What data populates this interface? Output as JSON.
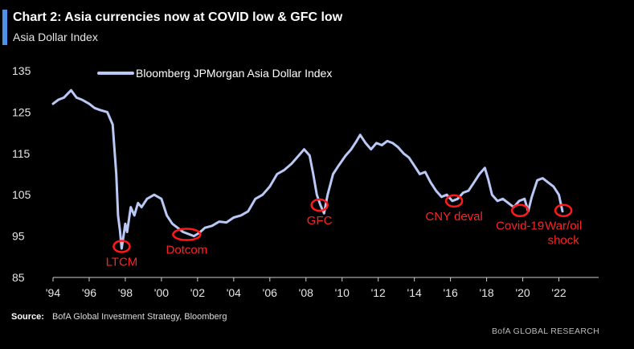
{
  "header": {
    "title": "Chart 2: Asia currencies now at COVID low & GFC low",
    "subtitle": "Asia Dollar Index",
    "accent_color": "#4f8fe8"
  },
  "footer": {
    "source_label": "Source:",
    "source_text": "BofA Global Investment Strategy, Bloomberg",
    "branding": "BofA GLOBAL RESEARCH"
  },
  "chart_data": {
    "type": "line",
    "title": "Chart 2: Asia currencies now at COVID low & GFC low",
    "subtitle": "Asia Dollar Index",
    "xlabel": "",
    "ylabel": "",
    "xlim": [
      1994,
      2024.2
    ],
    "ylim": [
      85,
      135
    ],
    "x_ticks": [
      1994,
      1996,
      1998,
      2000,
      2002,
      2004,
      2006,
      2008,
      2010,
      2012,
      2014,
      2016,
      2018,
      2020,
      2022
    ],
    "x_tick_labels": [
      "'94",
      "'96",
      "'98",
      "'00",
      "'02",
      "'04",
      "'06",
      "'08",
      "'10",
      "'12",
      "'14",
      "'16",
      "'18",
      "'20",
      "'22"
    ],
    "y_ticks": [
      85,
      95,
      105,
      115,
      125,
      135
    ],
    "y_tick_labels": [
      "85",
      "95",
      "105",
      "115",
      "125",
      "135"
    ],
    "grid": false,
    "legend_position": "top-left",
    "series": [
      {
        "name": "Bloomberg JPMorgan Asia Dollar Index",
        "color": "#b9c8f5",
        "x": [
          1994.0,
          1994.3,
          1994.6,
          1995.0,
          1995.3,
          1995.6,
          1996.0,
          1996.3,
          1996.6,
          1997.0,
          1997.3,
          1997.5,
          1997.6,
          1997.7,
          1997.8,
          1997.9,
          1998.0,
          1998.1,
          1998.3,
          1998.5,
          1998.7,
          1998.9,
          1999.2,
          1999.6,
          2000.0,
          2000.3,
          2000.6,
          2000.9,
          2001.2,
          2001.5,
          2001.8,
          2002.1,
          2002.4,
          2002.8,
          2003.2,
          2003.6,
          2004.0,
          2004.4,
          2004.8,
          2005.2,
          2005.6,
          2006.0,
          2006.4,
          2006.8,
          2007.2,
          2007.6,
          2007.9,
          2008.2,
          2008.4,
          2008.6,
          2008.8,
          2009.0,
          2009.2,
          2009.5,
          2009.8,
          2010.2,
          2010.5,
          2010.8,
          2011.0,
          2011.3,
          2011.6,
          2011.9,
          2012.2,
          2012.5,
          2012.8,
          2013.1,
          2013.4,
          2013.7,
          2014.0,
          2014.3,
          2014.6,
          2014.9,
          2015.2,
          2015.5,
          2015.8,
          2016.1,
          2016.4,
          2016.7,
          2017.0,
          2017.3,
          2017.6,
          2017.9,
          2018.1,
          2018.3,
          2018.6,
          2018.9,
          2019.2,
          2019.5,
          2019.8,
          2020.1,
          2020.3,
          2020.5,
          2020.8,
          2021.1,
          2021.4,
          2021.7,
          2022.0,
          2022.2
        ],
        "values": [
          127.0,
          128.0,
          128.5,
          130.3,
          128.5,
          128.0,
          127.0,
          126.0,
          125.5,
          125.0,
          122.0,
          110.0,
          100.0,
          96.5,
          92.0,
          95.0,
          98.0,
          96.0,
          102.0,
          100.0,
          103.0,
          102.0,
          104.0,
          105.0,
          104.0,
          100.0,
          98.0,
          97.0,
          96.0,
          95.5,
          95.0,
          95.8,
          97.0,
          97.5,
          98.5,
          98.3,
          99.5,
          100.0,
          101.0,
          104.0,
          105.0,
          107.0,
          110.0,
          111.0,
          112.5,
          114.5,
          116.0,
          114.5,
          110.0,
          105.0,
          102.5,
          100.5,
          105.0,
          110.0,
          112.0,
          114.5,
          116.0,
          118.0,
          119.5,
          117.5,
          116.0,
          117.5,
          117.0,
          118.0,
          117.5,
          116.5,
          115.0,
          114.0,
          112.0,
          110.0,
          110.5,
          108.0,
          106.0,
          104.5,
          105.0,
          103.5,
          104.0,
          105.5,
          106.0,
          108.0,
          110.0,
          111.5,
          108.5,
          105.0,
          103.5,
          104.0,
          103.0,
          102.0,
          103.5,
          104.0,
          101.0,
          104.5,
          108.5,
          109.0,
          108.0,
          107.0,
          105.0,
          101.0
        ]
      }
    ],
    "annotations": [
      {
        "label": "LTCM",
        "x": 1997.8,
        "y": 92.5
      },
      {
        "label": "Dotcom",
        "x": 2001.4,
        "y": 95.4
      },
      {
        "label": "GFC",
        "x": 2008.75,
        "y": 102.5
      },
      {
        "label": "CNY deval",
        "x": 2016.2,
        "y": 103.5
      },
      {
        "label": "Covid-19",
        "x": 2019.85,
        "y": 101.2
      },
      {
        "label": "War/oil shock",
        "x": 2022.25,
        "y": 101.2
      }
    ],
    "annotation_color": "#ff1a1a"
  }
}
